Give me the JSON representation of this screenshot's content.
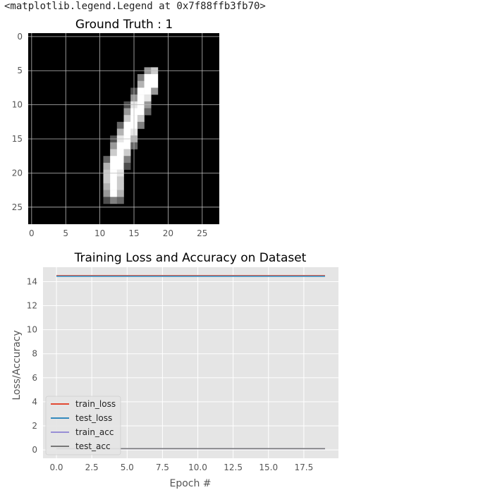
{
  "output_text": "<matplotlib.legend.Legend at 0x7f88ffb3fb70>",
  "colors": {
    "train_loss": "#E24A33",
    "test_loss": "#348ABD",
    "train_acc": "#988ED5",
    "test_acc": "#777777",
    "plot_bg": "#E5E5E5",
    "grid": "#ffffff"
  },
  "chart_data": [
    {
      "type": "heatmap",
      "title": "Ground Truth : 1",
      "colormap": "gray",
      "grid": true,
      "xlim": [
        -0.5,
        27.5
      ],
      "ylim": [
        27.5,
        -0.5
      ],
      "x_ticks": [
        0,
        5,
        10,
        15,
        20,
        25
      ],
      "y_ticks": [
        0,
        5,
        10,
        15,
        20,
        25
      ],
      "rows": 28,
      "cols": 28,
      "pixels": [
        [
          5,
          17,
          0.6
        ],
        [
          5,
          18,
          0.8
        ],
        [
          6,
          16,
          0.5
        ],
        [
          6,
          17,
          1.0
        ],
        [
          6,
          18,
          1.0
        ],
        [
          7,
          16,
          0.7
        ],
        [
          7,
          17,
          1.0
        ],
        [
          7,
          18,
          1.0
        ],
        [
          8,
          15,
          0.3
        ],
        [
          8,
          16,
          1.0
        ],
        [
          8,
          17,
          1.0
        ],
        [
          8,
          18,
          0.6
        ],
        [
          9,
          15,
          0.6
        ],
        [
          9,
          16,
          1.0
        ],
        [
          9,
          17,
          0.9
        ],
        [
          10,
          14,
          0.3
        ],
        [
          10,
          15,
          0.9
        ],
        [
          10,
          16,
          1.0
        ],
        [
          10,
          17,
          0.6
        ],
        [
          11,
          14,
          0.6
        ],
        [
          11,
          15,
          1.0
        ],
        [
          11,
          16,
          1.0
        ],
        [
          11,
          17,
          0.4
        ],
        [
          12,
          14,
          0.8
        ],
        [
          12,
          15,
          1.0
        ],
        [
          12,
          16,
          0.8
        ],
        [
          13,
          13,
          0.4
        ],
        [
          13,
          14,
          1.0
        ],
        [
          13,
          15,
          1.0
        ],
        [
          13,
          16,
          0.5
        ],
        [
          14,
          13,
          0.7
        ],
        [
          14,
          14,
          1.0
        ],
        [
          14,
          15,
          0.9
        ],
        [
          15,
          12,
          0.3
        ],
        [
          15,
          13,
          0.9
        ],
        [
          15,
          14,
          1.0
        ],
        [
          15,
          15,
          0.7
        ],
        [
          16,
          12,
          0.6
        ],
        [
          16,
          13,
          1.0
        ],
        [
          16,
          14,
          1.0
        ],
        [
          16,
          15,
          0.4
        ],
        [
          17,
          12,
          0.8
        ],
        [
          17,
          13,
          1.0
        ],
        [
          17,
          14,
          0.8
        ],
        [
          18,
          11,
          0.4
        ],
        [
          18,
          12,
          1.0
        ],
        [
          18,
          13,
          1.0
        ],
        [
          18,
          14,
          0.5
        ],
        [
          19,
          11,
          0.7
        ],
        [
          19,
          12,
          1.0
        ],
        [
          19,
          13,
          1.0
        ],
        [
          19,
          14,
          0.3
        ],
        [
          20,
          11,
          0.8
        ],
        [
          20,
          12,
          1.0
        ],
        [
          20,
          13,
          0.9
        ],
        [
          21,
          11,
          0.8
        ],
        [
          21,
          12,
          1.0
        ],
        [
          21,
          13,
          0.8
        ],
        [
          22,
          11,
          0.7
        ],
        [
          22,
          12,
          1.0
        ],
        [
          22,
          13,
          0.8
        ],
        [
          23,
          11,
          0.6
        ],
        [
          23,
          12,
          1.0
        ],
        [
          23,
          13,
          0.7
        ],
        [
          24,
          11,
          0.3
        ],
        [
          24,
          12,
          0.5
        ],
        [
          24,
          13,
          0.4
        ]
      ]
    },
    {
      "type": "line",
      "title": "Training Loss and Accuracy on Dataset",
      "xlabel": "Epoch #",
      "ylabel": "Loss/Accuracy",
      "xlim": [
        -0.95,
        19.95
      ],
      "ylim": [
        -0.7,
        15.2
      ],
      "x_ticks": [
        "0.0",
        "2.5",
        "5.0",
        "7.5",
        "10.0",
        "12.5",
        "15.0",
        "17.5"
      ],
      "y_ticks": [
        "0",
        "2",
        "4",
        "6",
        "8",
        "10",
        "12",
        "14"
      ],
      "grid": true,
      "legend_position": "lower-left",
      "x": [
        0,
        19
      ],
      "series": [
        {
          "name": "train_loss",
          "values": [
            14.5,
            14.5
          ]
        },
        {
          "name": "test_loss",
          "values": [
            14.45,
            14.45
          ]
        },
        {
          "name": "train_acc",
          "values": [
            0.1,
            0.1
          ]
        },
        {
          "name": "test_acc",
          "values": [
            0.1,
            0.1
          ]
        }
      ]
    }
  ]
}
